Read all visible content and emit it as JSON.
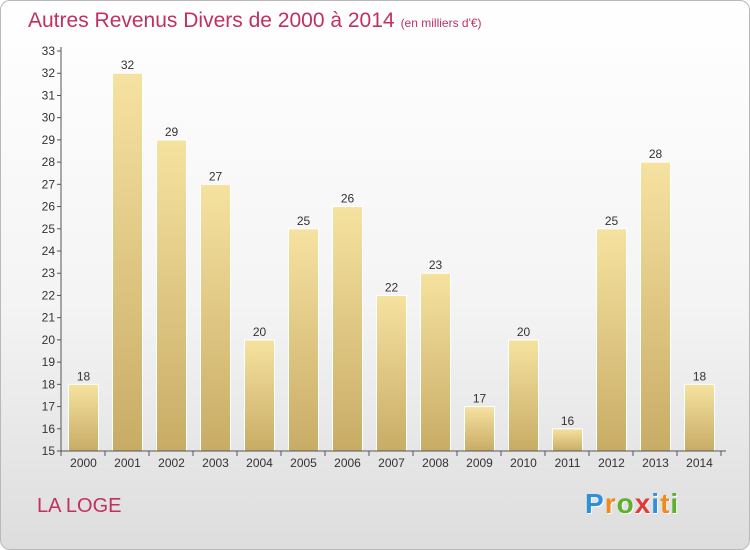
{
  "title": "Autres Revenus Divers de 2000 à 2014",
  "subtitle": "(en milliers d'€)",
  "location": "LA LOGE",
  "brand": {
    "letters": [
      "P",
      "r",
      "o",
      "x",
      "i",
      "t",
      "i"
    ],
    "colors": [
      "#2f8fd8",
      "#f08a1c",
      "#5fae2e",
      "#e23a36",
      "#2f8fd8",
      "#f08a1c",
      "#5fae2e"
    ]
  },
  "colors": {
    "title": "#c1305e",
    "bar_top": "#f6e2a0",
    "bar_bottom": "#c8ac66",
    "axis": "#555555",
    "grid": "#bbbbbb"
  },
  "chart_data": {
    "type": "bar",
    "title": "Autres Revenus Divers de 2000 à 2014",
    "subtitle": "(en milliers d'€)",
    "categories": [
      "2000",
      "2001",
      "2002",
      "2003",
      "2004",
      "2005",
      "2006",
      "2007",
      "2008",
      "2009",
      "2010",
      "2011",
      "2012",
      "2013",
      "2014"
    ],
    "values": [
      18,
      32,
      29,
      27,
      20,
      25,
      26,
      22,
      23,
      17,
      20,
      16,
      25,
      28,
      18
    ],
    "ylim": [
      15,
      33
    ],
    "yticks": [
      15,
      16,
      17,
      18,
      19,
      20,
      21,
      22,
      23,
      24,
      25,
      26,
      27,
      28,
      29,
      30,
      31,
      32,
      33
    ],
    "xlabel": "",
    "ylabel": "",
    "grid": false,
    "legend": "none"
  }
}
